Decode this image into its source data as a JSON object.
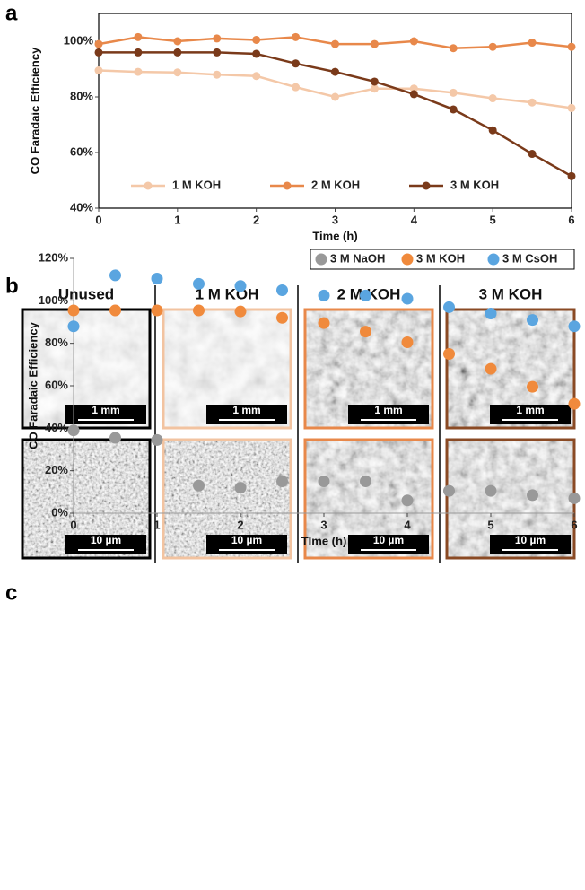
{
  "panel_labels": [
    "a",
    "b",
    "c"
  ],
  "sem": {
    "columns": [
      {
        "title": "Unused",
        "color": "#000000"
      },
      {
        "title": "1 M KOH",
        "color": "#f2c3a0"
      },
      {
        "title": "2 M KOH",
        "color": "#e8884a"
      },
      {
        "title": "3 M KOH",
        "color": "#8a4a24"
      }
    ],
    "scale_bars": [
      "1 mm",
      "10 µm"
    ]
  },
  "chart_data": [
    {
      "type": "line",
      "xlabel": "Time (h)",
      "ylabel": "CO Faradaic Efficiency",
      "x": [
        0,
        0.5,
        1,
        1.5,
        2,
        2.5,
        3,
        3.5,
        4,
        4.5,
        5,
        5.5,
        6
      ],
      "series": [
        {
          "name": "1 M KOH",
          "color": "#f4c8a8",
          "values": [
            89.5,
            89,
            88.8,
            88,
            87.5,
            83.5,
            80,
            83,
            83,
            81.5,
            79.5,
            78,
            76
          ]
        },
        {
          "name": "2 M KOH",
          "color": "#e8884a",
          "values": [
            99,
            101.5,
            100,
            101,
            100.5,
            101.5,
            99,
            99,
            100,
            97.5,
            98,
            99.5,
            98
          ]
        },
        {
          "name": "3 M KOH",
          "color": "#7a3a1a",
          "values": [
            96,
            96,
            96,
            96,
            95.5,
            92,
            89,
            85.5,
            81,
            75.5,
            68,
            59.5,
            51.5
          ]
        }
      ],
      "xlim": [
        0,
        6
      ],
      "xticks": [
        0,
        1,
        2,
        3,
        4,
        5,
        6
      ],
      "ylim": [
        40,
        110
      ],
      "yticks": [
        {
          "value": 40,
          "label": "40%"
        },
        {
          "value": 60,
          "label": "60%"
        },
        {
          "value": 80,
          "label": "80%"
        },
        {
          "value": 100,
          "label": "100%"
        }
      ],
      "grid": false,
      "legend": "lower center"
    },
    {
      "type": "scatter",
      "xlabel": "TIme (h)",
      "ylabel": "CO Faradaic Efficiency",
      "x": [
        0,
        0.5,
        1,
        1.5,
        2,
        2.5,
        3,
        3.5,
        4,
        4.5,
        5,
        5.5,
        6
      ],
      "series": [
        {
          "name": "3 M NaOH",
          "color": "#999999",
          "values": [
            39,
            35.5,
            34.5,
            13,
            12,
            15,
            15,
            15,
            6,
            10.5,
            10.5,
            8.5,
            7
          ]
        },
        {
          "name": "3 M KOH",
          "color": "#f08a3c",
          "values": [
            95.5,
            95.5,
            95.5,
            95.5,
            95,
            92,
            89.5,
            85.5,
            80.5,
            75,
            68,
            59.5,
            51.5
          ]
        },
        {
          "name": "3 M CsOH",
          "color": "#5aa5e0",
          "values": [
            88,
            112,
            110.5,
            108,
            107,
            105,
            102.5,
            102.5,
            101,
            97,
            94,
            91,
            88
          ]
        }
      ],
      "xlim": [
        0,
        6
      ],
      "xticks": [
        0,
        1,
        2,
        3,
        4,
        5,
        6
      ],
      "ylim": [
        0,
        120
      ],
      "yticks": [
        {
          "value": 0,
          "label": "0%"
        },
        {
          "value": 20,
          "label": "20%"
        },
        {
          "value": 40,
          "label": "40%"
        },
        {
          "value": 60,
          "label": "60%"
        },
        {
          "value": 80,
          "label": "80%"
        },
        {
          "value": 100,
          "label": "100%"
        },
        {
          "value": 120,
          "label": "120%"
        }
      ],
      "grid": false,
      "legend": "upper right"
    }
  ]
}
